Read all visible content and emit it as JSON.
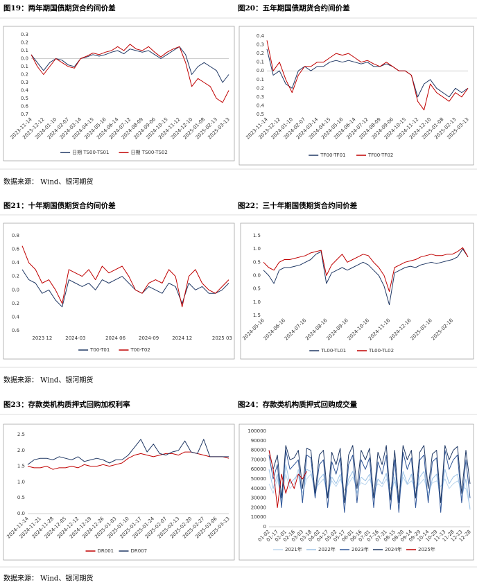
{
  "sources": [
    "数据来源： Wind、银河期货",
    "数据来源： Wind、银河期货",
    "数据来源： Wind、银河期货"
  ],
  "chart_data": [
    {
      "type": "line",
      "title": "图19：两年期国债期货合约间价差",
      "categories": [
        "2023-11-14",
        null,
        "2023-12-12",
        null,
        "2024-01-10",
        null,
        "2024-02-07",
        null,
        "2024-03-14",
        null,
        "2024-04-15",
        null,
        "2024-05-16",
        null,
        "2024-06-14",
        null,
        "2024-07-12",
        null,
        "2024-08-09",
        null,
        "2024-09-06",
        null,
        "2024-10-15",
        null,
        "2024-11-12",
        null,
        "2024-12-10",
        null,
        "2025-01-08",
        null,
        "2025-02-13",
        null,
        "2025-03-13"
      ],
      "series": [
        {
          "name": "日期 TS00-TS01",
          "color": "#203864",
          "values": [
            0.05,
            -0.05,
            -0.15,
            -0.05,
            0.0,
            -0.02,
            -0.08,
            -0.1,
            0.0,
            0.02,
            0.05,
            0.03,
            0.05,
            0.08,
            0.1,
            0.06,
            0.12,
            0.1,
            0.08,
            0.1,
            0.05,
            0.0,
            0.05,
            0.1,
            0.15,
            0.05,
            -0.2,
            -0.1,
            -0.05,
            -0.1,
            -0.15,
            -0.3,
            -0.2
          ]
        },
        {
          "name": "日期 TS00-TS02",
          "color": "#c00000",
          "values": [
            0.05,
            -0.1,
            -0.2,
            -0.1,
            0.0,
            -0.05,
            -0.1,
            -0.12,
            0.0,
            0.03,
            0.07,
            0.05,
            0.08,
            0.1,
            0.15,
            0.1,
            0.18,
            0.12,
            0.1,
            0.15,
            0.08,
            0.02,
            0.08,
            0.12,
            0.15,
            -0.05,
            -0.35,
            -0.25,
            -0.3,
            -0.35,
            -0.5,
            -0.55,
            -0.4
          ]
        }
      ],
      "ylim": [
        -0.7,
        0.3
      ],
      "yticks": [
        0.3,
        0.2,
        0.1,
        {
          "value": 0,
          "label": "0.0"
        },
        {
          "value": -0.1,
          "label": "0.1"
        },
        {
          "value": -0.2,
          "label": "0.2"
        },
        {
          "value": -0.3,
          "label": "0.3"
        },
        {
          "value": -0.4,
          "label": "0.4"
        },
        {
          "value": -0.5,
          "label": "0.5"
        },
        {
          "value": -0.6,
          "label": "0.6"
        },
        {
          "value": -0.7,
          "label": "0.7"
        }
      ],
      "zero_line": true,
      "legend": "bottom"
    },
    {
      "type": "line",
      "title": "图20：五年期国债期货合约间价差",
      "categories": [
        "2023-11-14",
        null,
        "2023-12-12",
        null,
        "2024-01-10",
        null,
        "2024-02-07",
        null,
        "2024-03-14",
        null,
        "2024-04-15",
        null,
        "2024-05-16",
        null,
        "2024-06-14",
        null,
        "2024-07-12",
        null,
        "2024-08-09",
        null,
        "2024-09-06",
        null,
        "2024-10-15",
        null,
        "2024-11-12",
        null,
        "2024-12-10",
        null,
        "2025-01-08",
        null,
        "2025-02-13",
        null,
        "2025-03-13"
      ],
      "series": [
        {
          "name": "TF00-TF01",
          "color": "#203864",
          "values": [
            0.25,
            -0.05,
            0.0,
            -0.15,
            -0.2,
            0.0,
            0.05,
            0.0,
            0.05,
            0.05,
            0.1,
            0.12,
            0.1,
            0.12,
            0.1,
            0.08,
            0.1,
            0.05,
            0.05,
            0.08,
            0.05,
            0.0,
            0.0,
            -0.05,
            -0.3,
            -0.15,
            -0.1,
            -0.2,
            -0.25,
            -0.3,
            -0.2,
            -0.25,
            -0.2
          ]
        },
        {
          "name": "TF00-TF02",
          "color": "#c00000",
          "values": [
            0.35,
            0.0,
            0.1,
            -0.1,
            -0.25,
            -0.05,
            0.05,
            0.05,
            0.1,
            0.1,
            0.15,
            0.2,
            0.18,
            0.2,
            0.15,
            0.1,
            0.12,
            0.08,
            0.05,
            0.1,
            0.05,
            0.0,
            0.0,
            -0.05,
            -0.35,
            -0.45,
            -0.15,
            -0.25,
            -0.3,
            -0.35,
            -0.25,
            -0.3,
            -0.2
          ]
        }
      ],
      "ylim": [
        -0.5,
        0.4
      ],
      "yticks": [
        0.4,
        0.3,
        0.2,
        0.1,
        {
          "value": 0,
          "label": "0.0"
        },
        {
          "value": -0.1,
          "label": "0.1"
        },
        {
          "value": -0.2,
          "label": "0.2"
        },
        {
          "value": -0.3,
          "label": "0.3"
        },
        {
          "value": -0.4,
          "label": "0.4"
        },
        {
          "value": -0.5,
          "label": "0.5"
        }
      ],
      "zero_line": true,
      "legend": "bottom"
    },
    {
      "type": "line",
      "title": "图21：十年期国债期货合约间价差",
      "categories": [
        null,
        null,
        null,
        "2023 12",
        null,
        null,
        null,
        null,
        "2024-03",
        null,
        null,
        null,
        null,
        null,
        "2024 06",
        null,
        null,
        null,
        null,
        "2024-09",
        null,
        null,
        null,
        null,
        "2024 12",
        null,
        null,
        null,
        null,
        null,
        "2025 03",
        null
      ],
      "series": [
        {
          "name": "T00-T01",
          "color": "#203864",
          "values": [
            0.3,
            0.15,
            0.1,
            -0.05,
            0.0,
            -0.15,
            -0.25,
            0.15,
            0.1,
            0.05,
            0.1,
            0.0,
            0.15,
            0.1,
            0.15,
            0.2,
            0.1,
            0.0,
            -0.05,
            0.05,
            0.0,
            -0.05,
            0.1,
            0.05,
            -0.2,
            0.1,
            0.0,
            0.05,
            -0.05,
            -0.05,
            0.0,
            0.1
          ]
        },
        {
          "name": "T00-T02",
          "color": "#c00000",
          "values": [
            0.65,
            0.4,
            0.3,
            0.1,
            0.15,
            0.0,
            -0.2,
            0.3,
            0.25,
            0.2,
            0.3,
            0.15,
            0.35,
            0.25,
            0.3,
            0.35,
            0.2,
            0.0,
            -0.05,
            0.1,
            0.15,
            0.1,
            0.3,
            0.2,
            -0.25,
            0.2,
            0.3,
            0.1,
            0.0,
            -0.05,
            0.05,
            0.15
          ]
        }
      ],
      "ylim": [
        -0.6,
        0.8
      ],
      "yticks": [
        0.8,
        0.6,
        0.4,
        0.2,
        {
          "value": 0,
          "label": "0.0"
        },
        {
          "value": -0.2,
          "label": "0.2"
        },
        {
          "value": -0.4,
          "label": "0.4"
        },
        {
          "value": -0.6,
          "label": "0.6"
        }
      ],
      "legend": "bottom"
    },
    {
      "type": "line",
      "title": "图22：三十年期国债期货合约间价差",
      "categories": [
        "2024-05-16",
        null,
        null,
        null,
        "2024-06-16",
        null,
        null,
        null,
        "2024-07-16",
        null,
        null,
        null,
        "2024-08-16",
        null,
        null,
        null,
        "2024-09-16",
        null,
        null,
        null,
        "2024-10-16",
        null,
        null,
        null,
        "2024-11-16",
        null,
        null,
        null,
        "2024-12-16",
        null,
        null,
        null,
        "2025-01-16",
        null,
        null,
        null,
        "2025-02-16",
        null,
        null,
        null
      ],
      "series": [
        {
          "name": "TL00-TL01",
          "color": "#203864",
          "values": [
            0.2,
            0.0,
            -0.3,
            0.2,
            0.3,
            0.3,
            0.35,
            0.4,
            0.5,
            0.6,
            0.8,
            0.9,
            -0.3,
            0.1,
            0.2,
            0.3,
            0.2,
            0.3,
            0.4,
            0.5,
            0.4,
            0.2,
            0.0,
            -0.4,
            -1.1,
            0.1,
            0.2,
            0.3,
            0.35,
            0.3,
            0.4,
            0.45,
            0.5,
            0.45,
            0.5,
            0.55,
            0.6,
            0.7,
            1.0,
            0.7
          ]
        },
        {
          "name": "TL00-TL02",
          "color": "#c00000",
          "values": [
            0.5,
            0.3,
            0.2,
            0.5,
            0.6,
            0.6,
            0.65,
            0.7,
            0.75,
            0.85,
            0.9,
            0.95,
            0.0,
            0.4,
            0.6,
            0.8,
            0.5,
            0.6,
            0.7,
            0.8,
            0.75,
            0.5,
            0.3,
            0.0,
            -0.6,
            0.3,
            0.4,
            0.5,
            0.55,
            0.6,
            0.7,
            0.75,
            0.8,
            0.75,
            0.75,
            0.8,
            0.8,
            0.9,
            1.05,
            0.7
          ]
        }
      ],
      "ylim": [
        -1.5,
        1.5
      ],
      "yticks": [
        1.5,
        {
          "value": 1,
          "label": "1.0"
        },
        0.5,
        {
          "value": 0,
          "label": "0.0"
        },
        {
          "value": -0.5,
          "label": "0.5"
        },
        {
          "value": -1,
          "label": "1.0"
        },
        {
          "value": -1.5,
          "label": "1.5"
        }
      ],
      "legend": "bottom"
    },
    {
      "type": "line",
      "title": "图23：存款类机构质押式回购加权利率",
      "categories": [
        "2024-11-14",
        null,
        "2024-11-21",
        null,
        "2024-11-28",
        null,
        "2024-12-05",
        null,
        "2024-12-12",
        null,
        "2024-12-19",
        null,
        "2024-12-26",
        null,
        "2025-01-03",
        null,
        "2025-01-10",
        null,
        "2025-01-17",
        null,
        "2025-01-24",
        null,
        "2025-02-07",
        null,
        "2025-02-13",
        null,
        "2025-02-20",
        null,
        "2025-02-27",
        null,
        "2025-03-06",
        null,
        "2025-03-13"
      ],
      "series": [
        {
          "name": "DR001",
          "color": "#c00000",
          "values": [
            1.5,
            1.45,
            1.45,
            1.5,
            1.4,
            1.45,
            1.45,
            1.5,
            1.45,
            1.55,
            1.5,
            1.5,
            1.55,
            1.5,
            1.55,
            1.6,
            1.75,
            1.85,
            1.9,
            1.85,
            1.8,
            1.85,
            1.9,
            1.9,
            1.85,
            1.95,
            1.95,
            1.9,
            1.85,
            1.8,
            1.8,
            1.8,
            1.75
          ]
        },
        {
          "name": "DR007",
          "color": "#203864",
          "values": [
            1.55,
            1.7,
            1.75,
            1.75,
            1.7,
            1.8,
            1.75,
            1.7,
            1.8,
            1.65,
            1.7,
            1.75,
            1.7,
            1.6,
            1.7,
            1.7,
            1.85,
            2.1,
            2.35,
            1.95,
            2.2,
            1.9,
            1.85,
            1.95,
            2.0,
            2.3,
            1.95,
            1.9,
            2.35,
            1.8,
            1.8,
            1.8,
            1.8
          ]
        }
      ],
      "ylim": [
        0,
        2.5
      ],
      "yticks": [
        {
          "value": 0,
          "label": "0.0"
        },
        0.5,
        {
          "value": 1,
          "label": "1.0"
        },
        1.5,
        {
          "value": 2,
          "label": "2.0"
        },
        2.5
      ],
      "axis_line": true,
      "legend": "bottom"
    },
    {
      "type": "line",
      "title": "图24：存款类机构质押式回购成交量",
      "categories": [
        "01-02",
        null,
        "01-17",
        null,
        "02-01",
        null,
        "02-16",
        null,
        "03-03",
        null,
        "03-18",
        null,
        "04-02",
        null,
        "04-17",
        null,
        "05-02",
        null,
        "05-17",
        null,
        "06-01",
        null,
        "06-16",
        null,
        "07-01",
        null,
        "07-16",
        null,
        "07-31",
        null,
        "08-15",
        null,
        "08-30",
        null,
        "09-14",
        null,
        "09-29",
        null,
        "10-14",
        null,
        "10-29",
        null,
        "11-13",
        null,
        "11-28",
        null,
        "12-13",
        null,
        "12-28"
      ],
      "series": [
        {
          "name": "2021年",
          "color": "#bdd7ee",
          "values": [
            45000,
            35000,
            50000,
            30000,
            55000,
            40000,
            45000,
            60000,
            35000,
            50000,
            55000,
            40000,
            45000,
            50000,
            35000,
            48000,
            42000,
            50000,
            38000,
            45000,
            52000,
            40000,
            46000,
            44000,
            50000,
            38000,
            45000,
            42000,
            50000,
            40000,
            47000,
            30000,
            52000,
            44000,
            48000,
            40000,
            45000,
            50000,
            35000,
            46000,
            48000,
            42000,
            50000,
            40000,
            45000,
            48000,
            42000,
            40000,
            20000
          ]
        },
        {
          "name": "2022年",
          "color": "#9dc3e6",
          "values": [
            60000,
            40000,
            55000,
            25000,
            65000,
            45000,
            50000,
            55000,
            30000,
            60000,
            58000,
            35000,
            50000,
            55000,
            30000,
            52000,
            45000,
            55000,
            30000,
            50000,
            58000,
            35000,
            52000,
            48000,
            55000,
            30000,
            50000,
            45000,
            56000,
            28000,
            52000,
            25000,
            58000,
            45000,
            55000,
            30000,
            52000,
            58000,
            30000,
            50000,
            55000,
            25000,
            60000,
            45000,
            52000,
            55000,
            30000,
            50000,
            18000
          ]
        },
        {
          "name": "2023年",
          "color": "#2f5597",
          "values": [
            75000,
            50000,
            65000,
            20000,
            80000,
            60000,
            65000,
            70000,
            25000,
            75000,
            72000,
            30000,
            65000,
            70000,
            20000,
            68000,
            55000,
            72000,
            15000,
            65000,
            75000,
            25000,
            70000,
            60000,
            72000,
            20000,
            68000,
            55000,
            75000,
            18000,
            70000,
            15000,
            78000,
            60000,
            72000,
            20000,
            70000,
            75000,
            25000,
            68000,
            72000,
            15000,
            80000,
            60000,
            70000,
            75000,
            25000,
            70000,
            30000
          ]
        },
        {
          "name": "2024年",
          "color": "#1f3864",
          "values": [
            80000,
            60000,
            75000,
            30000,
            85000,
            70000,
            72000,
            80000,
            40000,
            82000,
            80000,
            35000,
            75000,
            80000,
            30000,
            78000,
            65000,
            82000,
            25000,
            75000,
            85000,
            40000,
            80000,
            70000,
            82000,
            30000,
            78000,
            65000,
            85000,
            28000,
            80000,
            25000,
            85000,
            70000,
            80000,
            30000,
            78000,
            85000,
            40000,
            76000,
            80000,
            25000,
            85000,
            70000,
            80000,
            84000,
            35000,
            80000,
            45000
          ]
        },
        {
          "name": "2025年",
          "color": "#c00000",
          "values": [
            80000,
            60000,
            20000,
            55000,
            35000,
            50000,
            40000,
            55000,
            50000,
            58000,
            null,
            null,
            null,
            null,
            null,
            null,
            null,
            null,
            null,
            null,
            null,
            null,
            null,
            null,
            null,
            null,
            null,
            null,
            null,
            null,
            null,
            null,
            null,
            null,
            null,
            null,
            null,
            null,
            null,
            null,
            null,
            null,
            null,
            null,
            null,
            null,
            null,
            null,
            null
          ]
        }
      ],
      "ylim": [
        0,
        100000
      ],
      "yticks": [
        0,
        10000,
        20000,
        30000,
        40000,
        50000,
        60000,
        70000,
        80000,
        90000,
        100000
      ],
      "axis_line": true,
      "legend": "bottom"
    }
  ]
}
